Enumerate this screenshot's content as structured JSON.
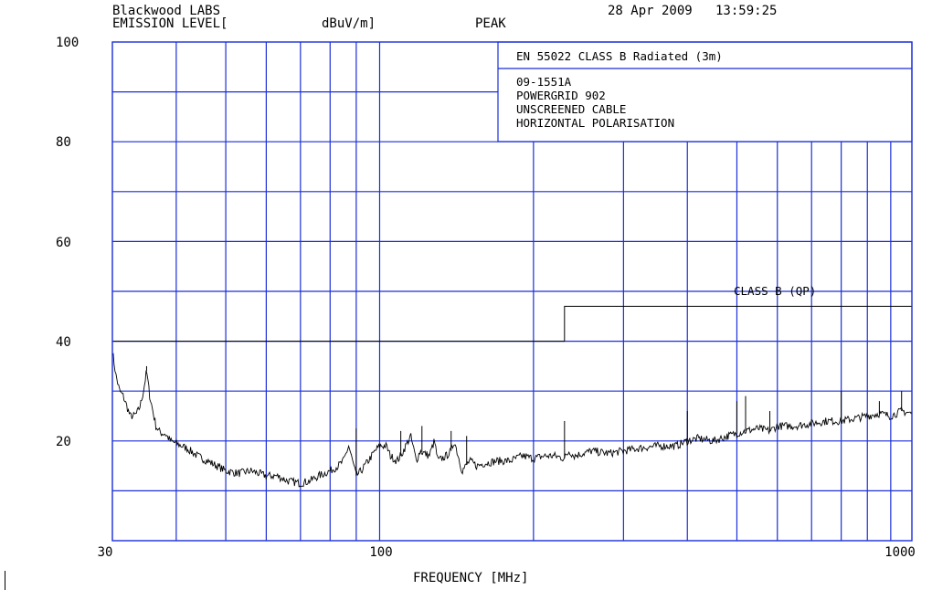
{
  "header": {
    "lab_name": "Blackwood LABS",
    "y_title": "EMISSION LEVEL[",
    "y_unit": "dBuV/m]",
    "detector": "PEAK",
    "date_time": "28 Apr 2009   13:59:25"
  },
  "info_box": {
    "standard": "EN 55022 CLASS B Radiated (3m)",
    "lines": [
      "09-1551A",
      "POWERGRID 902",
      "UNSCREENED CABLE",
      "HORIZONTAL POLARISATION"
    ]
  },
  "limit_label": "CLASS B (QP)",
  "colors": {
    "grid": "#1a2ed8",
    "trace": "#000000",
    "limit": "#000000"
  },
  "chart_data": {
    "type": "line",
    "xscale": "log",
    "xlim": [
      30,
      1100
    ],
    "ylim": [
      0,
      100
    ],
    "xlabel": "FREQUENCY [MHz]",
    "ylabel": "EMISSION LEVEL[ dBuV/m]",
    "x_ticks": [
      {
        "value": 30,
        "label": "30"
      },
      {
        "value": 100,
        "label": "100"
      },
      {
        "value": 1000,
        "label": "1000"
      }
    ],
    "y_ticks": [
      {
        "value": 100,
        "label": "100"
      },
      {
        "value": 80,
        "label": "80"
      },
      {
        "value": 60,
        "label": "60"
      },
      {
        "value": 40,
        "label": "40"
      },
      {
        "value": 20,
        "label": "20"
      }
    ],
    "grid": true,
    "limit_line": {
      "name": "CLASS B (QP)",
      "segments": [
        {
          "x": [
            30,
            230
          ],
          "y": 40
        },
        {
          "x": [
            230,
            1100
          ],
          "y": 47
        }
      ]
    },
    "series": [
      {
        "x": [
          30,
          30.5,
          31,
          31.5,
          32,
          32.5,
          33,
          33.5,
          34,
          34.5,
          35,
          35.5,
          36,
          36.5,
          37,
          37.5,
          38,
          39,
          40,
          42,
          44,
          46,
          48,
          50,
          53,
          56,
          60,
          63,
          66,
          70,
          73,
          76,
          80,
          83,
          85,
          87,
          90,
          92,
          95,
          98,
          100,
          103,
          105,
          108,
          110,
          115,
          118,
          120,
          125,
          128,
          130,
          135,
          138,
          140,
          145,
          150,
          155,
          160,
          170,
          180,
          190,
          200,
          210,
          220,
          230,
          235,
          240,
          250,
          260,
          280,
          300,
          320,
          350,
          380,
          400,
          420,
          450,
          480,
          500,
          520,
          550,
          580,
          600,
          650,
          700,
          750,
          800,
          850,
          900,
          950,
          1000,
          1050,
          1100
        ],
        "y": [
          38,
          33,
          30,
          29,
          27,
          25,
          25,
          25.5,
          27,
          30,
          34,
          29,
          26,
          23,
          22,
          21.5,
          21.5,
          20,
          19.5,
          18.5,
          17,
          16,
          15,
          14,
          13.5,
          14,
          13,
          13,
          12,
          11.5,
          12,
          13,
          14,
          15,
          16,
          19,
          13,
          14,
          16,
          18,
          19,
          19,
          17,
          16,
          17,
          21,
          16,
          18,
          17,
          20,
          16,
          17,
          18,
          20,
          14,
          16,
          15,
          15.5,
          16,
          16,
          17,
          16.5,
          17,
          17,
          16.5,
          18,
          17,
          17.5,
          18,
          17.5,
          18,
          18.5,
          19,
          19,
          20,
          20.5,
          20,
          21,
          21.5,
          22,
          22.5,
          22,
          23,
          23,
          23.5,
          24,
          24,
          24.5,
          25,
          25.5,
          25,
          26,
          25.5
        ]
      }
    ],
    "spikes": [
      {
        "x": 35,
        "y": 35
      },
      {
        "x": 90,
        "y": 22.5
      },
      {
        "x": 110,
        "y": 22
      },
      {
        "x": 121,
        "y": 23
      },
      {
        "x": 138,
        "y": 22
      },
      {
        "x": 148,
        "y": 21
      },
      {
        "x": 230,
        "y": 24
      },
      {
        "x": 400,
        "y": 26
      },
      {
        "x": 500,
        "y": 28
      },
      {
        "x": 520,
        "y": 29
      },
      {
        "x": 580,
        "y": 26
      },
      {
        "x": 800,
        "y": 30
      },
      {
        "x": 950,
        "y": 28
      },
      {
        "x": 1050,
        "y": 30
      }
    ]
  }
}
